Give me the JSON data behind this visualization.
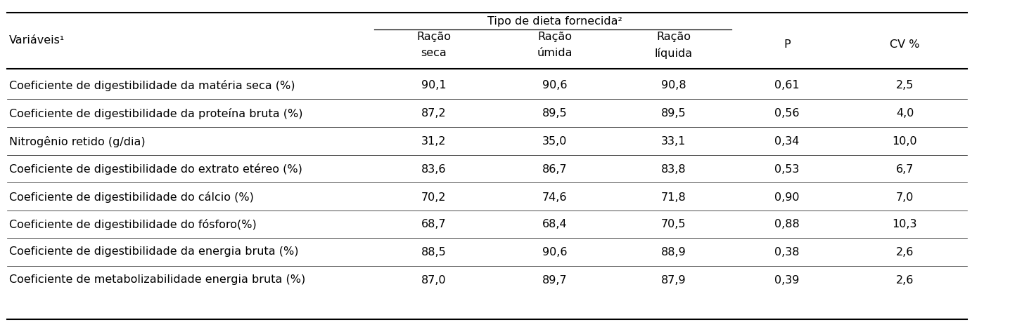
{
  "header_group": "Tipo de dieta fornecida²",
  "col_headers_line1": [
    "Variáveis¹",
    "Ração",
    "Ração",
    "Ração",
    "P",
    "CV %"
  ],
  "col_headers_line2": [
    "",
    "seca",
    "úmida",
    "líquida",
    "",
    ""
  ],
  "rows": [
    [
      "Coeficiente de digestibilidade da matéria seca (%)",
      "90,1",
      "90,6",
      "90,8",
      "0,61",
      "2,5"
    ],
    [
      "Coeficiente de digestibilidade da proteína bruta (%)",
      "87,2",
      "89,5",
      "89,5",
      "0,56",
      "4,0"
    ],
    [
      "Nitrogênio retido (g/dia)",
      "31,2",
      "35,0",
      "33,1",
      "0,34",
      "10,0"
    ],
    [
      "Coeficiente de digestibilidade do extrato etéreo (%)",
      "83,6",
      "86,7",
      "83,8",
      "0,53",
      "6,7"
    ],
    [
      "Coeficiente de digestibilidade do cálcio (%)",
      "70,2",
      "74,6",
      "71,8",
      "0,90",
      "7,0"
    ],
    [
      "Coeficiente de digestibilidade do fósforo(%)",
      "68,7",
      "68,4",
      "70,5",
      "0,88",
      "10,3"
    ],
    [
      "Coeficiente de digestibilidade da energia bruta (%)",
      "88,5",
      "90,6",
      "88,9",
      "0,38",
      "2,6"
    ],
    [
      "Coeficiente de metabolizabilidade energia bruta (%)",
      "87,0",
      "89,7",
      "87,9",
      "0,39",
      "2,6"
    ]
  ],
  "background_color": "#ffffff",
  "text_color": "#000000",
  "font_size": 11.5,
  "header_font_size": 11.5
}
